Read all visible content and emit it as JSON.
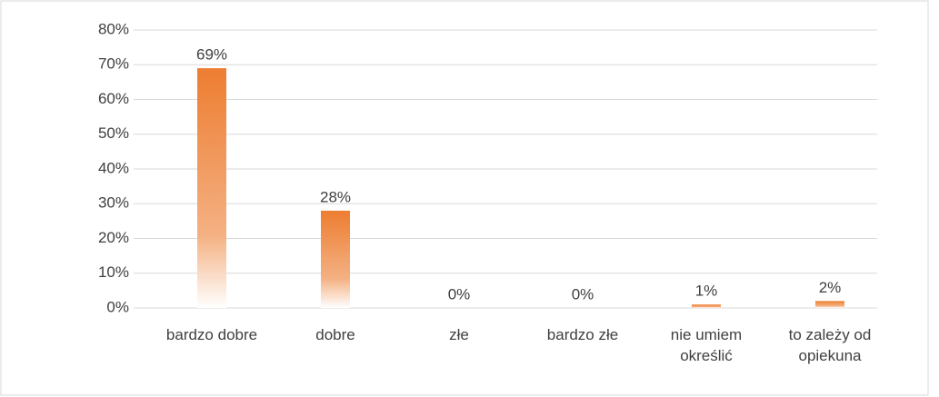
{
  "chart_data": {
    "type": "bar",
    "categories": [
      "bardzo dobre",
      "dobre",
      "złe",
      "bardzo złe",
      "nie umiem określić",
      "to zależy od opiekuna"
    ],
    "values": [
      69,
      28,
      0,
      0,
      1,
      2
    ],
    "value_labels": [
      "69%",
      "28%",
      "0%",
      "0%",
      "1%",
      "2%"
    ],
    "color": "#ed7d31",
    "ylim": [
      0,
      80
    ],
    "yticks": [
      {
        "value": 0,
        "label": "0%"
      },
      {
        "value": 10,
        "label": "10%"
      },
      {
        "value": 20,
        "label": "20%"
      },
      {
        "value": 30,
        "label": "30%"
      },
      {
        "value": 40,
        "label": "40%"
      },
      {
        "value": 50,
        "label": "50%"
      },
      {
        "value": 60,
        "label": "60%"
      },
      {
        "value": 70,
        "label": "70%"
      },
      {
        "value": 80,
        "label": "80%"
      }
    ],
    "grid": true
  }
}
